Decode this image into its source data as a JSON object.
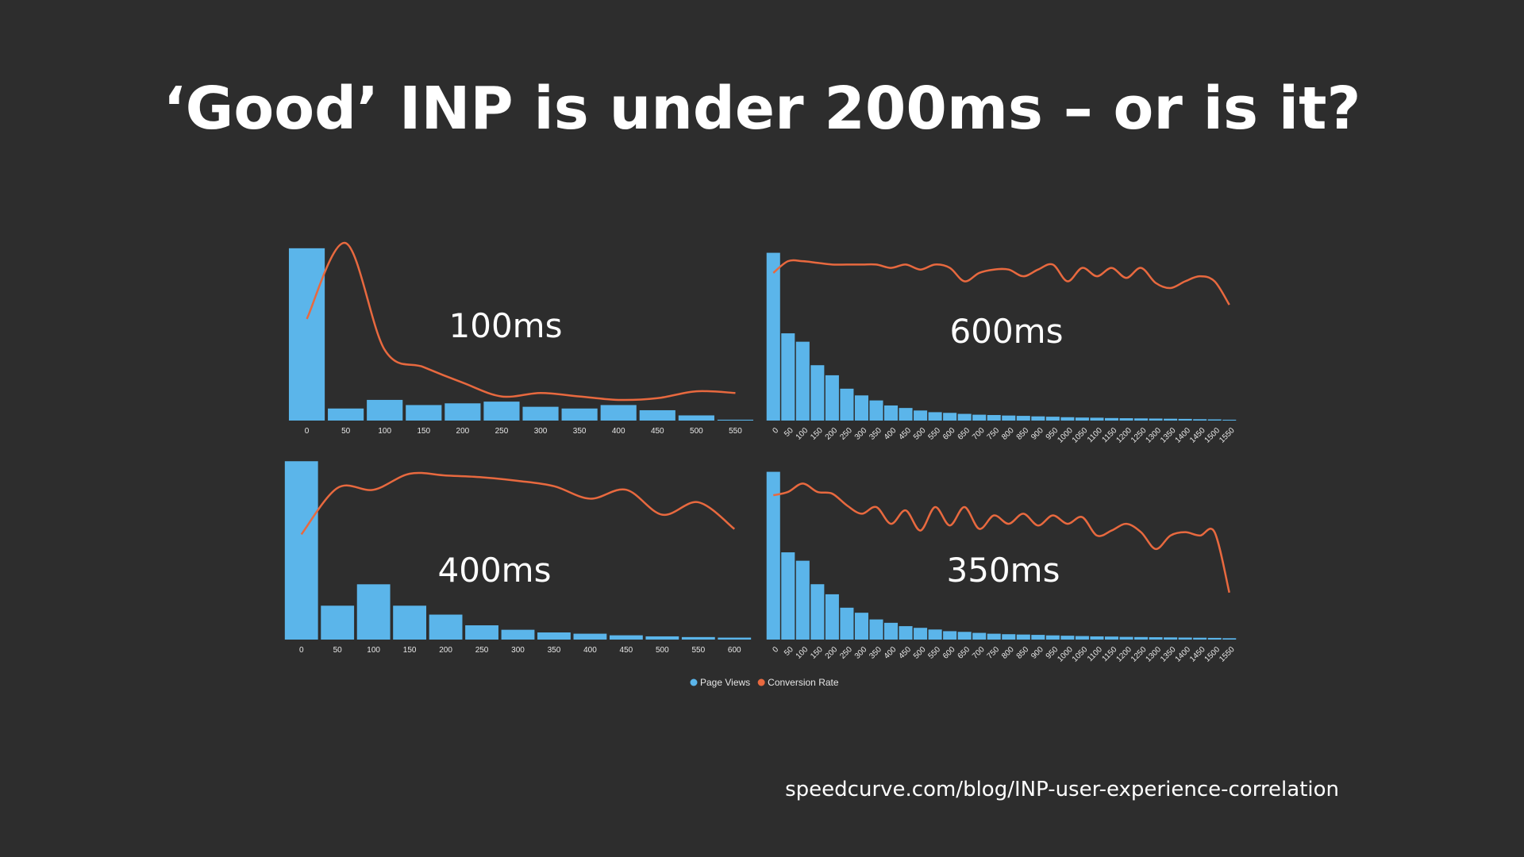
{
  "title": "‘Good’ INP is under 200ms – or is it?",
  "source": "speedcurve.com/blog/INP-user-experience-correlation",
  "chart_data": [
    {
      "type": "bar-line",
      "annotation": "100ms",
      "ylim": [
        0,
        105
      ],
      "categories": [
        "0",
        "50",
        "100",
        "150",
        "200",
        "250",
        "300",
        "350",
        "400",
        "450",
        "500",
        "550"
      ],
      "series": [
        {
          "name": "Page Views",
          "type": "bar",
          "color": "#5bb5ea",
          "values": [
            100,
            7,
            12,
            9,
            10,
            11,
            8,
            7,
            9,
            6,
            3,
            0.5
          ]
        },
        {
          "name": "Conversion Rate",
          "type": "line",
          "color": "#e8693f",
          "values": [
            59,
            103,
            41,
            31,
            22,
            14,
            16,
            14,
            12,
            13,
            17,
            16
          ]
        }
      ]
    },
    {
      "type": "bar-line",
      "annotation": "600ms",
      "ylim": [
        0,
        105
      ],
      "rotate_ticks": true,
      "categories": [
        "0",
        "50",
        "100",
        "150",
        "200",
        "250",
        "300",
        "350",
        "400",
        "450",
        "500",
        "550",
        "600",
        "650",
        "700",
        "750",
        "800",
        "850",
        "900",
        "950",
        "1000",
        "1050",
        "1100",
        "1150",
        "1200",
        "1250",
        "1300",
        "1350",
        "1400",
        "1450",
        "1500",
        "1550"
      ],
      "series": [
        {
          "name": "Page Views",
          "type": "bar",
          "color": "#5bb5ea",
          "values": [
            100,
            52,
            47,
            33,
            27,
            19,
            15,
            12,
            9,
            7.5,
            6,
            5,
            4.6,
            4,
            3.5,
            3.3,
            3,
            2.8,
            2.5,
            2.3,
            2,
            1.8,
            1.7,
            1.5,
            1.4,
            1.3,
            1.2,
            1.1,
            1,
            0.8,
            0.7,
            0.5
          ]
        },
        {
          "name": "Conversion Rate",
          "type": "line",
          "color": "#e8693f",
          "values": [
            88,
            95,
            95,
            94,
            93,
            93,
            93,
            93,
            91,
            93,
            90,
            93,
            91,
            83,
            88,
            90,
            90,
            86,
            90,
            93,
            83,
            91,
            86,
            91,
            85,
            91,
            82,
            79,
            83,
            86,
            83,
            69
          ]
        }
      ]
    },
    {
      "type": "bar-line",
      "annotation": "400ms",
      "ylim": [
        0,
        105
      ],
      "categories": [
        "0",
        "50",
        "100",
        "150",
        "200",
        "250",
        "300",
        "350",
        "400",
        "450",
        "500",
        "550",
        "600"
      ],
      "series": [
        {
          "name": "Page Views",
          "type": "bar",
          "color": "#5bb5ea",
          "values": [
            100,
            19,
            31,
            19,
            14,
            8,
            5.5,
            4,
            3.3,
            2.4,
            1.8,
            1.4,
            1.1
          ]
        },
        {
          "name": "Conversion Rate",
          "type": "line",
          "color": "#e8693f",
          "values": [
            59,
            85,
            84,
            93,
            92,
            91,
            89,
            86,
            79,
            84,
            70,
            77,
            62
          ]
        }
      ]
    },
    {
      "type": "bar-line",
      "annotation": "350ms",
      "ylim": [
        0,
        105
      ],
      "rotate_ticks": true,
      "categories": [
        "0",
        "50",
        "100",
        "150",
        "200",
        "250",
        "300",
        "350",
        "400",
        "450",
        "500",
        "550",
        "600",
        "650",
        "700",
        "750",
        "800",
        "850",
        "900",
        "950",
        "1000",
        "1050",
        "1100",
        "1150",
        "1200",
        "1250",
        "1300",
        "1350",
        "1400",
        "1450",
        "1500",
        "1550"
      ],
      "series": [
        {
          "name": "Page Views",
          "type": "bar",
          "color": "#5bb5ea",
          "values": [
            100,
            52,
            47,
            33,
            27,
            19,
            16,
            12,
            10,
            8,
            7,
            6,
            5,
            4.6,
            4,
            3.5,
            3.2,
            3,
            2.8,
            2.5,
            2.3,
            2.1,
            1.9,
            1.8,
            1.6,
            1.5,
            1.4,
            1.3,
            1.2,
            1.1,
            1,
            0.8
          ]
        },
        {
          "name": "Conversion Rate",
          "type": "line",
          "color": "#e8693f",
          "values": [
            86,
            88,
            93,
            88,
            87,
            80,
            75,
            79,
            69,
            77,
            65,
            79,
            68,
            79,
            66,
            74,
            69,
            75,
            68,
            74,
            69,
            73,
            62,
            65,
            69,
            64,
            54,
            62,
            64,
            62,
            64,
            28
          ]
        }
      ]
    }
  ]
}
